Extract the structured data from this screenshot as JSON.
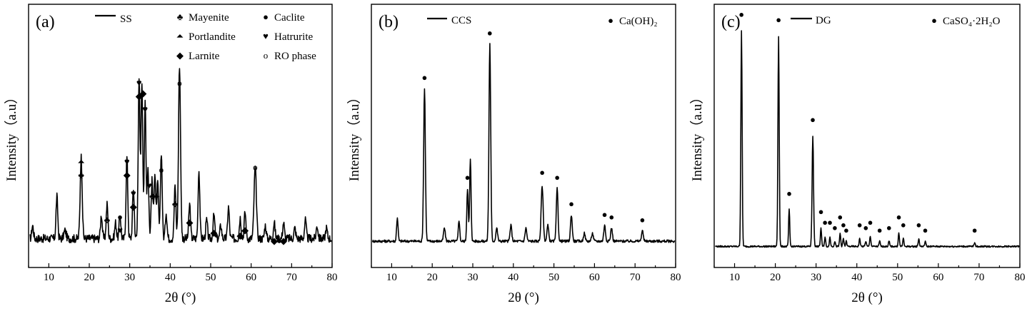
{
  "chart_data": [
    {
      "type": "line",
      "panel_label": "(a)",
      "xlabel": "2θ (°)",
      "ylabel": "Intensity（a.u）",
      "xlim": [
        5,
        80
      ],
      "ylim": [
        0,
        100
      ],
      "xticks": [
        10,
        20,
        30,
        40,
        50,
        60,
        70,
        80
      ],
      "series": [
        {
          "name": "SS",
          "baseline": 11,
          "noise": 1.6,
          "peaks": [
            [
              6,
              5,
              0.3
            ],
            [
              12,
              16,
              0.3
            ],
            [
              14,
              3,
              0.4
            ],
            [
              18,
              31,
              0.35
            ],
            [
              23,
              9,
              0.3
            ],
            [
              24.4,
              13,
              0.3
            ],
            [
              26.5,
              6,
              0.3
            ],
            [
              27.6,
              9,
              0.3
            ],
            [
              29.3,
              31,
              0.3
            ],
            [
              30.9,
              19,
              0.3
            ],
            [
              32.3,
              61,
              0.3
            ],
            [
              33,
              60,
              0.3
            ],
            [
              33.8,
              51,
              0.3
            ],
            [
              34.5,
              27,
              0.3
            ],
            [
              35.5,
              22,
              0.3
            ],
            [
              36.2,
              25,
              0.3
            ],
            [
              36.9,
              21,
              0.3
            ],
            [
              37.8,
              33,
              0.3
            ],
            [
              39,
              10,
              0.3
            ],
            [
              41.2,
              20,
              0.3
            ],
            [
              42.3,
              66,
              0.35
            ],
            [
              44.8,
              13,
              0.3
            ],
            [
              47.1,
              26,
              0.3
            ],
            [
              49,
              7,
              0.3
            ],
            [
              50.8,
              9,
              0.3
            ],
            [
              52.5,
              5,
              0.3
            ],
            [
              54.4,
              12,
              0.3
            ],
            [
              57.3,
              8,
              0.3
            ],
            [
              58.5,
              10,
              0.3
            ],
            [
              61,
              27,
              0.4
            ],
            [
              63.5,
              5,
              0.3
            ],
            [
              65.7,
              6,
              0.3
            ],
            [
              68,
              6,
              0.3
            ],
            [
              70.8,
              4,
              0.3
            ],
            [
              73.4,
              7,
              0.3
            ],
            [
              76.3,
              5,
              0.3
            ],
            [
              78.6,
              4,
              0.3
            ]
          ]
        }
      ],
      "legend": [
        {
          "symbol": "♣",
          "label": "Mayenite"
        },
        {
          "symbol": "●",
          "label": "Caclite"
        },
        {
          "symbol": "⏶",
          "label": "Portlandite"
        },
        {
          "symbol": "♥",
          "label": "Hatrurite"
        },
        {
          "symbol": "◆",
          "label": "Larnite"
        },
        {
          "symbol": "o",
          "label": "RO phase"
        }
      ],
      "markers": [
        {
          "x": 18,
          "y": 34,
          "symbol": "♣"
        },
        {
          "x": 18,
          "y": 39,
          "symbol": "⏶"
        },
        {
          "x": 24.4,
          "y": 17,
          "symbol": "♣"
        },
        {
          "x": 27.6,
          "y": 13,
          "symbol": "♥"
        },
        {
          "x": 27.6,
          "y": 18,
          "symbol": "●"
        },
        {
          "x": 29.3,
          "y": 34,
          "symbol": "◆"
        },
        {
          "x": 29.3,
          "y": 39,
          "symbol": "♥"
        },
        {
          "x": 30.9,
          "y": 22,
          "symbol": "◆"
        },
        {
          "x": 30.9,
          "y": 27,
          "symbol": "♥"
        },
        {
          "x": 32.3,
          "y": 64,
          "symbol": "◆"
        },
        {
          "x": 32.3,
          "y": 69,
          "symbol": "♥"
        },
        {
          "x": 33.3,
          "y": 65,
          "symbol": "◆"
        },
        {
          "x": 33.8,
          "y": 59,
          "symbol": "♥"
        },
        {
          "x": 34.8,
          "y": 30,
          "symbol": "♥"
        },
        {
          "x": 35.6,
          "y": 26,
          "symbol": "♣"
        },
        {
          "x": 36.6,
          "y": 26,
          "symbol": "♣"
        },
        {
          "x": 37.8,
          "y": 36,
          "symbol": "o"
        },
        {
          "x": 41.2,
          "y": 23,
          "symbol": "♣"
        },
        {
          "x": 42.3,
          "y": 69,
          "symbol": "o"
        },
        {
          "x": 44.8,
          "y": 16,
          "symbol": "◆"
        },
        {
          "x": 50.8,
          "y": 12,
          "symbol": "◆"
        },
        {
          "x": 57.3,
          "y": 11,
          "symbol": "◆"
        },
        {
          "x": 58.5,
          "y": 13,
          "symbol": "◆"
        },
        {
          "x": 61,
          "y": 37,
          "symbol": "o"
        },
        {
          "x": 65.7,
          "y": 9,
          "symbol": "◆"
        },
        {
          "x": 68,
          "y": 9,
          "symbol": "◆"
        }
      ]
    },
    {
      "type": "line",
      "panel_label": "(b)",
      "xlabel": "2θ (°)",
      "ylabel": "Intensity（a.u）",
      "xlim": [
        5,
        80
      ],
      "ylim": [
        0,
        100
      ],
      "xticks": [
        10,
        20,
        30,
        40,
        50,
        60,
        70,
        80
      ],
      "series": [
        {
          "name": "CCS",
          "baseline": 10,
          "noise": 0.5,
          "peaks": [
            [
              11.4,
              9,
              0.25
            ],
            [
              18.1,
              58,
              0.3
            ],
            [
              23,
              5,
              0.3
            ],
            [
              26.6,
              8,
              0.25
            ],
            [
              28.7,
              20,
              0.25
            ],
            [
              29.4,
              31,
              0.25
            ],
            [
              34.2,
              75,
              0.3
            ],
            [
              35.9,
              5,
              0.3
            ],
            [
              39.4,
              6,
              0.3
            ],
            [
              43.1,
              5,
              0.3
            ],
            [
              47.1,
              21,
              0.35
            ],
            [
              48.5,
              6,
              0.3
            ],
            [
              50.8,
              20,
              0.3
            ],
            [
              54.3,
              10,
              0.3
            ],
            [
              57.5,
              3,
              0.3
            ],
            [
              59.5,
              3,
              0.3
            ],
            [
              62.5,
              6,
              0.3
            ],
            [
              64.2,
              5,
              0.3
            ],
            [
              71.8,
              4,
              0.3
            ]
          ]
        }
      ],
      "legend": [
        {
          "symbol": "●",
          "label": "Ca(OH)₂"
        }
      ],
      "markers": [
        {
          "x": 18.1,
          "y": 71,
          "symbol": "●"
        },
        {
          "x": 28.7,
          "y": 33,
          "symbol": "●"
        },
        {
          "x": 34.2,
          "y": 88,
          "symbol": "●"
        },
        {
          "x": 47.1,
          "y": 35,
          "symbol": "●"
        },
        {
          "x": 50.8,
          "y": 33,
          "symbol": "●"
        },
        {
          "x": 54.3,
          "y": 23,
          "symbol": "●"
        },
        {
          "x": 62.5,
          "y": 19,
          "symbol": "●"
        },
        {
          "x": 64.2,
          "y": 18,
          "symbol": "●"
        },
        {
          "x": 71.8,
          "y": 17,
          "symbol": "●"
        }
      ]
    },
    {
      "type": "line",
      "panel_label": "(c)",
      "xlabel": "2θ (°)",
      "ylabel": "Intensity（a.u）",
      "xlim": [
        5,
        80
      ],
      "ylim": [
        0,
        100
      ],
      "xticks": [
        10,
        20,
        30,
        40,
        50,
        60,
        70,
        80
      ],
      "series": [
        {
          "name": "DG",
          "baseline": 8,
          "noise": 0.3,
          "peaks": [
            [
              11.7,
              82,
              0.22
            ],
            [
              20.8,
              80,
              0.22
            ],
            [
              23.4,
              14,
              0.2
            ],
            [
              29.2,
              42,
              0.25
            ],
            [
              31.2,
              7,
              0.2
            ],
            [
              32.2,
              3.5,
              0.2
            ],
            [
              33.4,
              3.5,
              0.2
            ],
            [
              34.6,
              2,
              0.2
            ],
            [
              35.9,
              5,
              0.2
            ],
            [
              36.7,
              3,
              0.2
            ],
            [
              37.4,
              2,
              0.2
            ],
            [
              40.7,
              3,
              0.2
            ],
            [
              42.2,
              2,
              0.2
            ],
            [
              43.3,
              4,
              0.2
            ],
            [
              45.6,
              2,
              0.2
            ],
            [
              47.9,
              2,
              0.2
            ],
            [
              50.3,
              5,
              0.2
            ],
            [
              51.4,
              3,
              0.2
            ],
            [
              55.2,
              3,
              0.2
            ],
            [
              56.8,
              2,
              0.2
            ],
            [
              68.9,
              1.5,
              0.2
            ]
          ]
        }
      ],
      "legend": [
        {
          "symbol": "●",
          "label": "CaSO₄·2H₂O"
        }
      ],
      "markers": [
        {
          "x": 11.7,
          "y": 95,
          "symbol": "●"
        },
        {
          "x": 20.8,
          "y": 93,
          "symbol": "●"
        },
        {
          "x": 23.4,
          "y": 27,
          "symbol": "●"
        },
        {
          "x": 29.2,
          "y": 55,
          "symbol": "●"
        },
        {
          "x": 31.2,
          "y": 20,
          "symbol": "●"
        },
        {
          "x": 32.2,
          "y": 16,
          "symbol": "●"
        },
        {
          "x": 33.4,
          "y": 16,
          "symbol": "●"
        },
        {
          "x": 34.6,
          "y": 14,
          "symbol": "●"
        },
        {
          "x": 35.9,
          "y": 18,
          "symbol": "●"
        },
        {
          "x": 36.7,
          "y": 15,
          "symbol": "●"
        },
        {
          "x": 37.4,
          "y": 13,
          "symbol": "●"
        },
        {
          "x": 40.7,
          "y": 15,
          "symbol": "●"
        },
        {
          "x": 42.2,
          "y": 14,
          "symbol": "●"
        },
        {
          "x": 43.3,
          "y": 16,
          "symbol": "●"
        },
        {
          "x": 45.6,
          "y": 13,
          "symbol": "●"
        },
        {
          "x": 47.9,
          "y": 14,
          "symbol": "●"
        },
        {
          "x": 50.3,
          "y": 18,
          "symbol": "●"
        },
        {
          "x": 51.4,
          "y": 15,
          "symbol": "●"
        },
        {
          "x": 55.2,
          "y": 15,
          "symbol": "●"
        },
        {
          "x": 56.8,
          "y": 13,
          "symbol": "●"
        },
        {
          "x": 68.9,
          "y": 13,
          "symbol": "●"
        }
      ]
    }
  ]
}
